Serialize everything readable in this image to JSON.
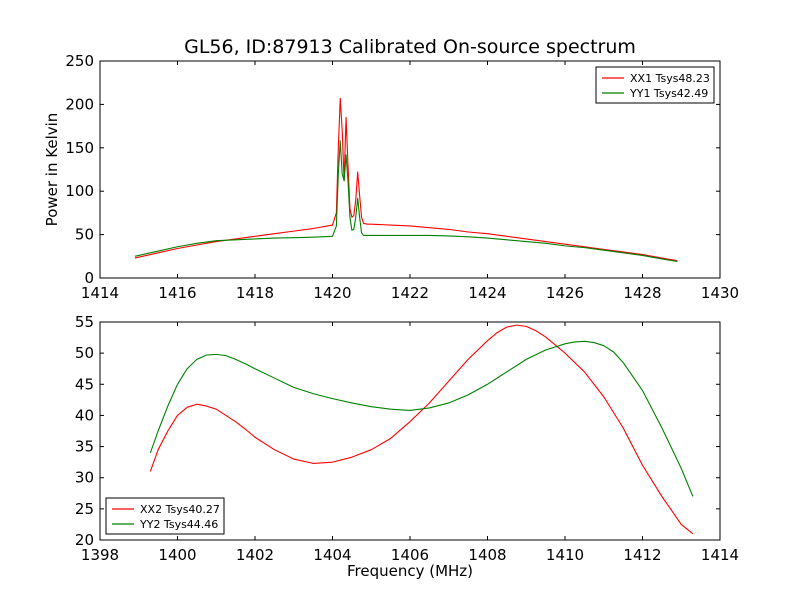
{
  "figure": {
    "title": "GL56, ID:87913 Calibrated On-source spectrum",
    "line_color_red": "#ff0000",
    "line_color_green": "#008000"
  },
  "chart_data": [
    {
      "type": "line",
      "title": "GL56, ID:87913 Calibrated On-source spectrum",
      "xlabel": "",
      "ylabel": "Power in Kelvin",
      "xlim": [
        1414,
        1430
      ],
      "ylim": [
        0,
        250
      ],
      "xticks": [
        "1414",
        "1416",
        "1418",
        "1420",
        "1422",
        "1424",
        "1426",
        "1428",
        "1430"
      ],
      "yticks": [
        "0",
        "50",
        "100",
        "150",
        "200",
        "250"
      ],
      "grid": false,
      "legend_position": "top-right",
      "series": [
        {
          "name": "XX1 Tsys48.23",
          "color": "#ff0000",
          "x": [
            1414.9,
            1415.5,
            1416.0,
            1416.5,
            1417.0,
            1417.5,
            1418.0,
            1418.5,
            1419.0,
            1419.5,
            1420.0,
            1420.1,
            1420.15,
            1420.2,
            1420.25,
            1420.3,
            1420.35,
            1420.4,
            1420.45,
            1420.5,
            1420.55,
            1420.6,
            1420.65,
            1420.7,
            1420.75,
            1420.8,
            1420.9,
            1421.0,
            1421.5,
            1422.0,
            1422.5,
            1423.0,
            1423.5,
            1424.0,
            1424.5,
            1425.0,
            1425.5,
            1426.0,
            1426.5,
            1427.0,
            1427.5,
            1428.0,
            1428.5,
            1428.9
          ],
          "y": [
            23,
            29,
            34,
            38,
            42,
            45,
            48,
            51,
            54,
            57,
            61,
            75,
            150,
            207,
            170,
            112,
            185,
            130,
            80,
            70,
            72,
            90,
            122,
            95,
            70,
            63,
            62,
            62,
            61,
            60,
            58,
            56,
            53,
            51,
            48,
            45,
            42,
            39,
            36,
            33,
            30,
            27,
            23,
            20
          ]
        },
        {
          "name": "YY1 Tsys42.49",
          "color": "#008000",
          "x": [
            1414.9,
            1415.5,
            1416.0,
            1416.5,
            1417.0,
            1417.5,
            1418.0,
            1418.5,
            1419.0,
            1419.5,
            1420.0,
            1420.1,
            1420.15,
            1420.2,
            1420.25,
            1420.3,
            1420.35,
            1420.4,
            1420.45,
            1420.5,
            1420.55,
            1420.6,
            1420.65,
            1420.7,
            1420.75,
            1420.8,
            1420.9,
            1421.0,
            1421.5,
            1422.0,
            1422.5,
            1423.0,
            1423.5,
            1424.0,
            1424.5,
            1425.0,
            1425.5,
            1426.0,
            1426.5,
            1427.0,
            1427.5,
            1428.0,
            1428.5,
            1428.9
          ],
          "y": [
            25,
            31,
            36,
            40,
            43,
            44,
            45,
            46,
            46.5,
            47,
            48,
            60,
            120,
            158,
            120,
            112,
            142,
            112,
            70,
            55,
            56,
            70,
            92,
            70,
            52,
            49,
            49,
            49,
            49,
            49,
            49,
            48.5,
            47.5,
            46,
            44,
            42,
            40,
            37,
            35,
            32,
            29,
            26,
            22,
            19
          ]
        }
      ]
    },
    {
      "type": "line",
      "title": "",
      "xlabel": "Frequency (MHz)",
      "ylabel": "",
      "xlim": [
        1398,
        1414
      ],
      "ylim": [
        20,
        55
      ],
      "xticks": [
        "1398",
        "1400",
        "1402",
        "1404",
        "1406",
        "1408",
        "1410",
        "1412",
        "1414"
      ],
      "yticks": [
        "20",
        "25",
        "30",
        "35",
        "40",
        "45",
        "50",
        "55"
      ],
      "grid": false,
      "legend_position": "bottom-left",
      "series": [
        {
          "name": "XX2 Tsys40.27",
          "color": "#ff0000",
          "x": [
            1399.3,
            1399.5,
            1399.75,
            1400.0,
            1400.25,
            1400.5,
            1400.75,
            1401.0,
            1401.25,
            1401.5,
            1401.75,
            1402.0,
            1402.5,
            1403.0,
            1403.5,
            1404.0,
            1404.5,
            1405.0,
            1405.5,
            1406.0,
            1406.5,
            1407.0,
            1407.5,
            1408.0,
            1408.25,
            1408.5,
            1408.75,
            1409.0,
            1409.25,
            1409.5,
            1409.75,
            1410.0,
            1410.5,
            1411.0,
            1411.5,
            1412.0,
            1412.5,
            1413.0,
            1413.3
          ],
          "y": [
            31,
            34.5,
            37.5,
            40,
            41.3,
            41.8,
            41.5,
            41,
            40,
            39,
            37.8,
            36.5,
            34.5,
            33,
            32.3,
            32.5,
            33.3,
            34.5,
            36.3,
            39,
            42,
            45.5,
            49,
            52,
            53.3,
            54.2,
            54.5,
            54.3,
            53.6,
            52.6,
            51.3,
            50,
            47,
            43,
            38,
            32,
            27,
            22.5,
            21
          ]
        },
        {
          "name": "YY2 Tsys44.46",
          "color": "#008000",
          "x": [
            1399.3,
            1399.5,
            1399.75,
            1400.0,
            1400.25,
            1400.5,
            1400.75,
            1401.0,
            1401.25,
            1401.5,
            1401.75,
            1402.0,
            1402.5,
            1403.0,
            1403.5,
            1404.0,
            1404.5,
            1405.0,
            1405.5,
            1406.0,
            1406.5,
            1407.0,
            1407.5,
            1408.0,
            1408.5,
            1409.0,
            1409.5,
            1410.0,
            1410.25,
            1410.5,
            1410.75,
            1411.0,
            1411.25,
            1411.5,
            1412.0,
            1412.5,
            1413.0,
            1413.3
          ],
          "y": [
            34,
            37.5,
            41.5,
            45,
            47.5,
            49,
            49.7,
            49.8,
            49.6,
            49,
            48.3,
            47.5,
            46,
            44.5,
            43.5,
            42.7,
            42,
            41.4,
            41,
            40.8,
            41.2,
            42,
            43.3,
            45,
            47,
            49,
            50.5,
            51.5,
            51.8,
            51.9,
            51.7,
            51.2,
            50.2,
            48.5,
            44,
            38,
            31.5,
            27
          ]
        }
      ]
    }
  ]
}
